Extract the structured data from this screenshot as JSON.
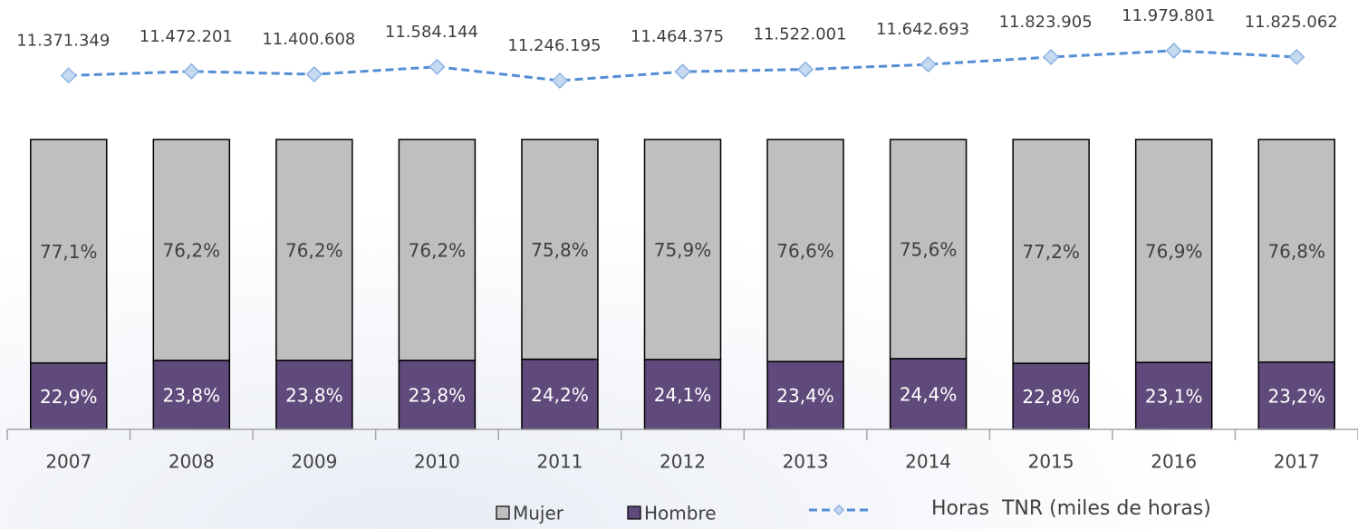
{
  "chart_data": {
    "type": "bar",
    "stacked": true,
    "categories": [
      "2007",
      "2008",
      "2009",
      "2010",
      "2011",
      "2012",
      "2013",
      "2014",
      "2015",
      "2016",
      "2017"
    ],
    "ylim": [
      0,
      145
    ],
    "y2lim": [
      2700000,
      13000000
    ],
    "legend": "bottom",
    "series": [
      {
        "name": "Hombre",
        "type": "bar",
        "color": "#604a7b",
        "values": [
          22.9,
          23.8,
          23.8,
          23.8,
          24.2,
          24.1,
          23.4,
          24.4,
          22.8,
          23.1,
          23.2
        ],
        "value_labels": [
          "22,9%",
          "23,8%",
          "23,8%",
          "23,8%",
          "24,2%",
          "24,1%",
          "23,4%",
          "24,4%",
          "22,8%",
          "23,1%",
          "23,2%"
        ]
      },
      {
        "name": "Mujer",
        "type": "bar",
        "color": "#bfbfbf",
        "values": [
          77.1,
          76.2,
          76.2,
          76.2,
          75.8,
          75.9,
          76.6,
          75.6,
          77.2,
          76.9,
          76.8
        ],
        "value_labels": [
          "77,1%",
          "76,2%",
          "76,2%",
          "76,2%",
          "75,8%",
          "75,9%",
          "76,6%",
          "75,6%",
          "77,2%",
          "76,9%",
          "76,8%"
        ]
      },
      {
        "name": "Horas  TNR (miles de horas)",
        "type": "line",
        "axis": "y2",
        "color": "#558ed5",
        "values": [
          11371349,
          11472201,
          11400608,
          11584144,
          11246195,
          11464375,
          11522001,
          11642693,
          11823905,
          11979801,
          11825062
        ],
        "value_labels": [
          "11.371.349",
          "11.472.201",
          "11.400.608",
          "11.584.144",
          "11.246.195",
          "11.464.375",
          "11.522.001",
          "11.642.693",
          "11.823.905",
          "11.979.801",
          "11.825.062"
        ]
      }
    ]
  }
}
